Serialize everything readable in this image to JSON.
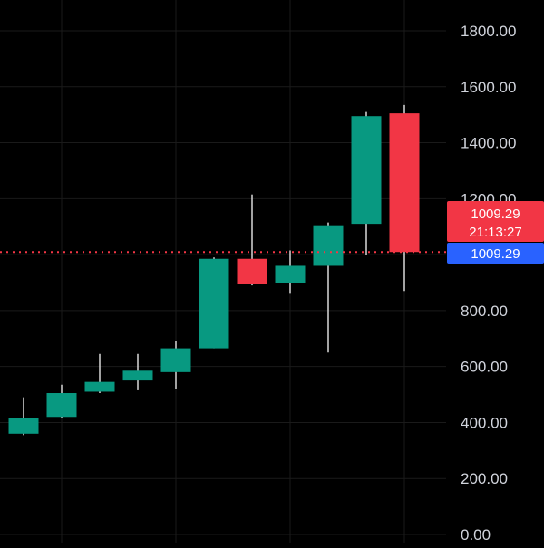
{
  "chart_data": {
    "type": "candlestick",
    "ylim": [
      0,
      1800
    ],
    "y_ticks": [
      "0.00",
      "200.00",
      "400.00",
      "600.00",
      "800.00",
      "1200.00",
      "1400.00",
      "1600.00",
      "1800.00"
    ],
    "grid": true,
    "candles": [
      {
        "open": 360,
        "high": 490,
        "low": 355,
        "close": 415
      },
      {
        "open": 420,
        "high": 535,
        "low": 415,
        "close": 505
      },
      {
        "open": 510,
        "high": 645,
        "low": 505,
        "close": 545
      },
      {
        "open": 550,
        "high": 645,
        "low": 515,
        "close": 585
      },
      {
        "open": 580,
        "high": 690,
        "low": 520,
        "close": 665
      },
      {
        "open": 665,
        "high": 990,
        "low": 665,
        "close": 985
      },
      {
        "open": 985,
        "high": 1215,
        "low": 890,
        "close": 895
      },
      {
        "open": 900,
        "high": 1015,
        "low": 860,
        "close": 960
      },
      {
        "open": 960,
        "high": 1115,
        "low": 650,
        "close": 1105
      },
      {
        "open": 1110,
        "high": 1510,
        "low": 1000,
        "close": 1495
      },
      {
        "open": 1505,
        "high": 1535,
        "low": 870,
        "close": 1009.29
      }
    ],
    "current_price": 1009.29,
    "price_label": "1009.29",
    "countdown_label": "21:13:27",
    "last_price_label": "1009.29",
    "colors": {
      "up": "#089981",
      "down": "#f23645",
      "wick": "#d9d9d9",
      "axis_text": "#d1d4dc",
      "grid": "#1a1a1a",
      "price_line": "#f23645",
      "price_badge": "#f23645",
      "last_badge": "#2962ff"
    }
  }
}
